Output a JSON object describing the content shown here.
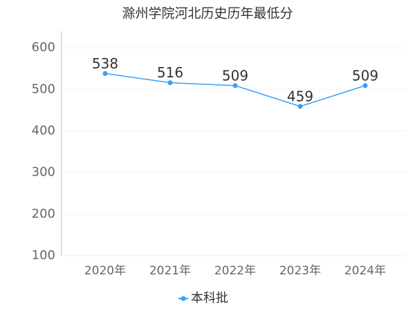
{
  "chart_data": {
    "type": "line",
    "title": "滁州学院河北历史历年最低分",
    "categories": [
      "2020年",
      "2021年",
      "2022年",
      "2023年",
      "2024年"
    ],
    "series": [
      {
        "name": "本科批",
        "color": "#3a9ff5",
        "values": [
          538,
          516,
          509,
          459,
          509
        ]
      }
    ],
    "ylim": [
      100,
      640
    ],
    "yticks": [
      100,
      200,
      300,
      400,
      500,
      600
    ],
    "grid": true
  }
}
